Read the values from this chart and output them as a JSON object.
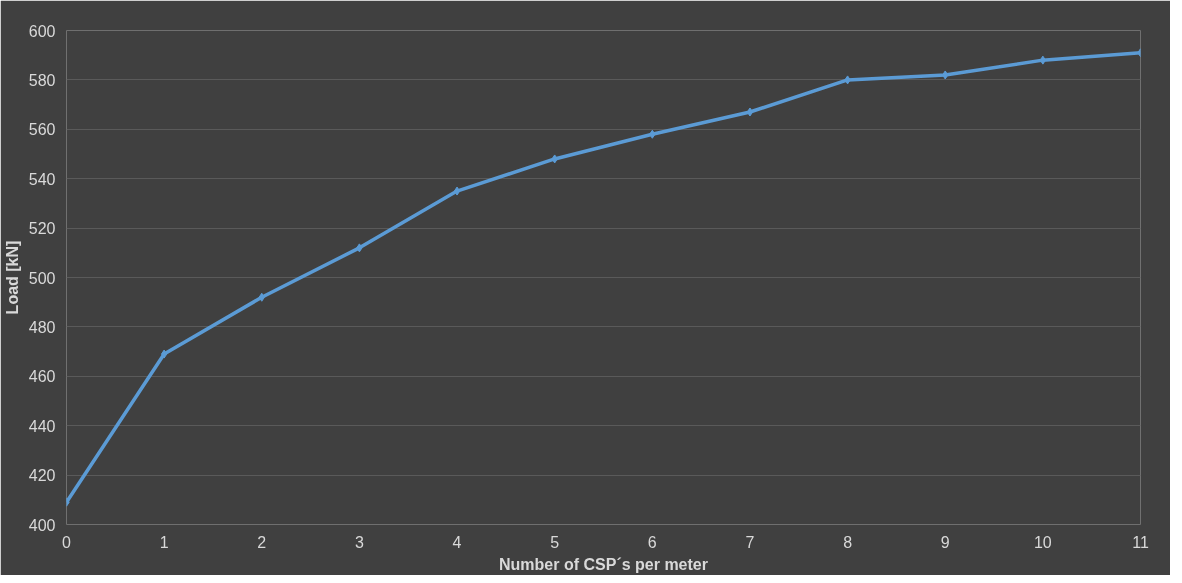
{
  "chart_data": {
    "type": "line",
    "xlabel": "Number of CSP´s per meter",
    "ylabel": "Load [kN]",
    "categories": [
      "0",
      "1",
      "2",
      "3",
      "4",
      "5",
      "6",
      "7",
      "8",
      "9",
      "10",
      "11"
    ],
    "series": [
      {
        "color": "#5b9bd5",
        "values": [
          409,
          469,
          492,
          512,
          535,
          548,
          558,
          567,
          580,
          582,
          588,
          591
        ]
      }
    ],
    "ylim": [
      400,
      600
    ],
    "yticks": [
      400,
      420,
      440,
      460,
      480,
      500,
      520,
      540,
      560,
      580,
      600
    ],
    "grid": "y",
    "marker": "diamond",
    "line_style": "solid"
  }
}
